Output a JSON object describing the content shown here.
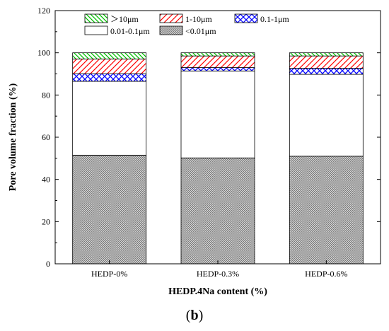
{
  "chart_data": {
    "type": "bar",
    "stacked": true,
    "categories": [
      "HEDP-0%",
      "HEDP-0.3%",
      "HEDP-0.6%"
    ],
    "series": [
      {
        "name": "<0.01μm",
        "values": [
          51.5,
          50.2,
          51.0
        ],
        "color": "#a0a0a0",
        "pattern": "dots"
      },
      {
        "name": "0.01-0.1μm",
        "values": [
          35.0,
          41.2,
          38.8
        ],
        "color": "#ffffff",
        "pattern": "none"
      },
      {
        "name": "0.1-1μm",
        "values": [
          3.6,
          1.6,
          2.9
        ],
        "color": "#0000ff",
        "pattern": "crosshatch"
      },
      {
        "name": "1-10μm",
        "values": [
          7.0,
          5.5,
          5.8
        ],
        "color": "#ff0000",
        "pattern": "diagonal"
      },
      {
        "name": "＞10μm",
        "values": [
          2.9,
          1.5,
          1.5
        ],
        "color": "#00c000",
        "pattern": "back-diagonal"
      }
    ],
    "xlabel": "HEDP.4Na content (%)",
    "ylabel": "Pore volume fraction (%)",
    "ylim": [
      0,
      120
    ],
    "yticks": [
      0,
      20,
      40,
      60,
      80,
      100,
      120
    ],
    "legend_position": "top-inside",
    "grid": false
  },
  "figure_label": "(b)"
}
